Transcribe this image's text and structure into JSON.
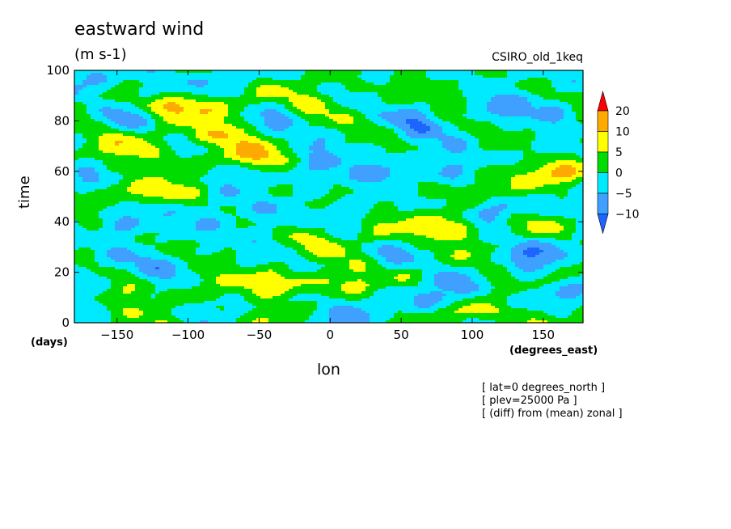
{
  "title": "eastward wind",
  "units": "(m s-1)",
  "model": "CSIRO_old_1keq",
  "notes": [
    "[ lat=0 degrees_north ]",
    "[ plev=25000 Pa ]",
    "[ (diff) from (mean) zonal ]"
  ],
  "colors": {
    "below_-10": "#1e64ff",
    "-10_-5": "#3fa0ff",
    "-5_0": "#00eaff",
    "0_5": "#00dc00",
    "5_10": "#ffff00",
    "10_20": "#ffaa00",
    "above_20": "#ff0000"
  },
  "chart_data": {
    "type": "heatmap",
    "title": "eastward wind",
    "subtitle": "(m s-1)",
    "xlabel": "lon",
    "x_unit": "(degrees_east)",
    "ylabel": "time",
    "y_unit": "(days)",
    "xlim": [
      -180,
      178
    ],
    "ylim": [
      0,
      100
    ],
    "x_ticks": [
      -150,
      -100,
      -50,
      0,
      50,
      100,
      150
    ],
    "y_ticks": [
      0,
      20,
      40,
      60,
      80,
      100
    ],
    "colorbar": {
      "levels": [
        -10,
        -5,
        0,
        5,
        10,
        20
      ],
      "labels": [
        "20",
        "10",
        "5",
        "0",
        "−5",
        "−10"
      ],
      "extend": "both"
    },
    "approx_features": [
      {
        "lon": -110,
        "time": 86,
        "value": 12
      },
      {
        "lon": -95,
        "time": 74,
        "value": 10
      },
      {
        "lon": -60,
        "time": 65,
        "value": 12
      },
      {
        "lon": -120,
        "time": 52,
        "value": 11
      },
      {
        "lon": -20,
        "time": 16,
        "value": 12
      },
      {
        "lon": 105,
        "time": 4,
        "value": 12
      },
      {
        "lon": 160,
        "time": 60,
        "value": 9
      },
      {
        "lon": 80,
        "time": 38,
        "value": 8
      },
      {
        "lon": 50,
        "time": 58,
        "value": -7
      },
      {
        "lon": 120,
        "time": 45,
        "value": -7
      }
    ]
  }
}
